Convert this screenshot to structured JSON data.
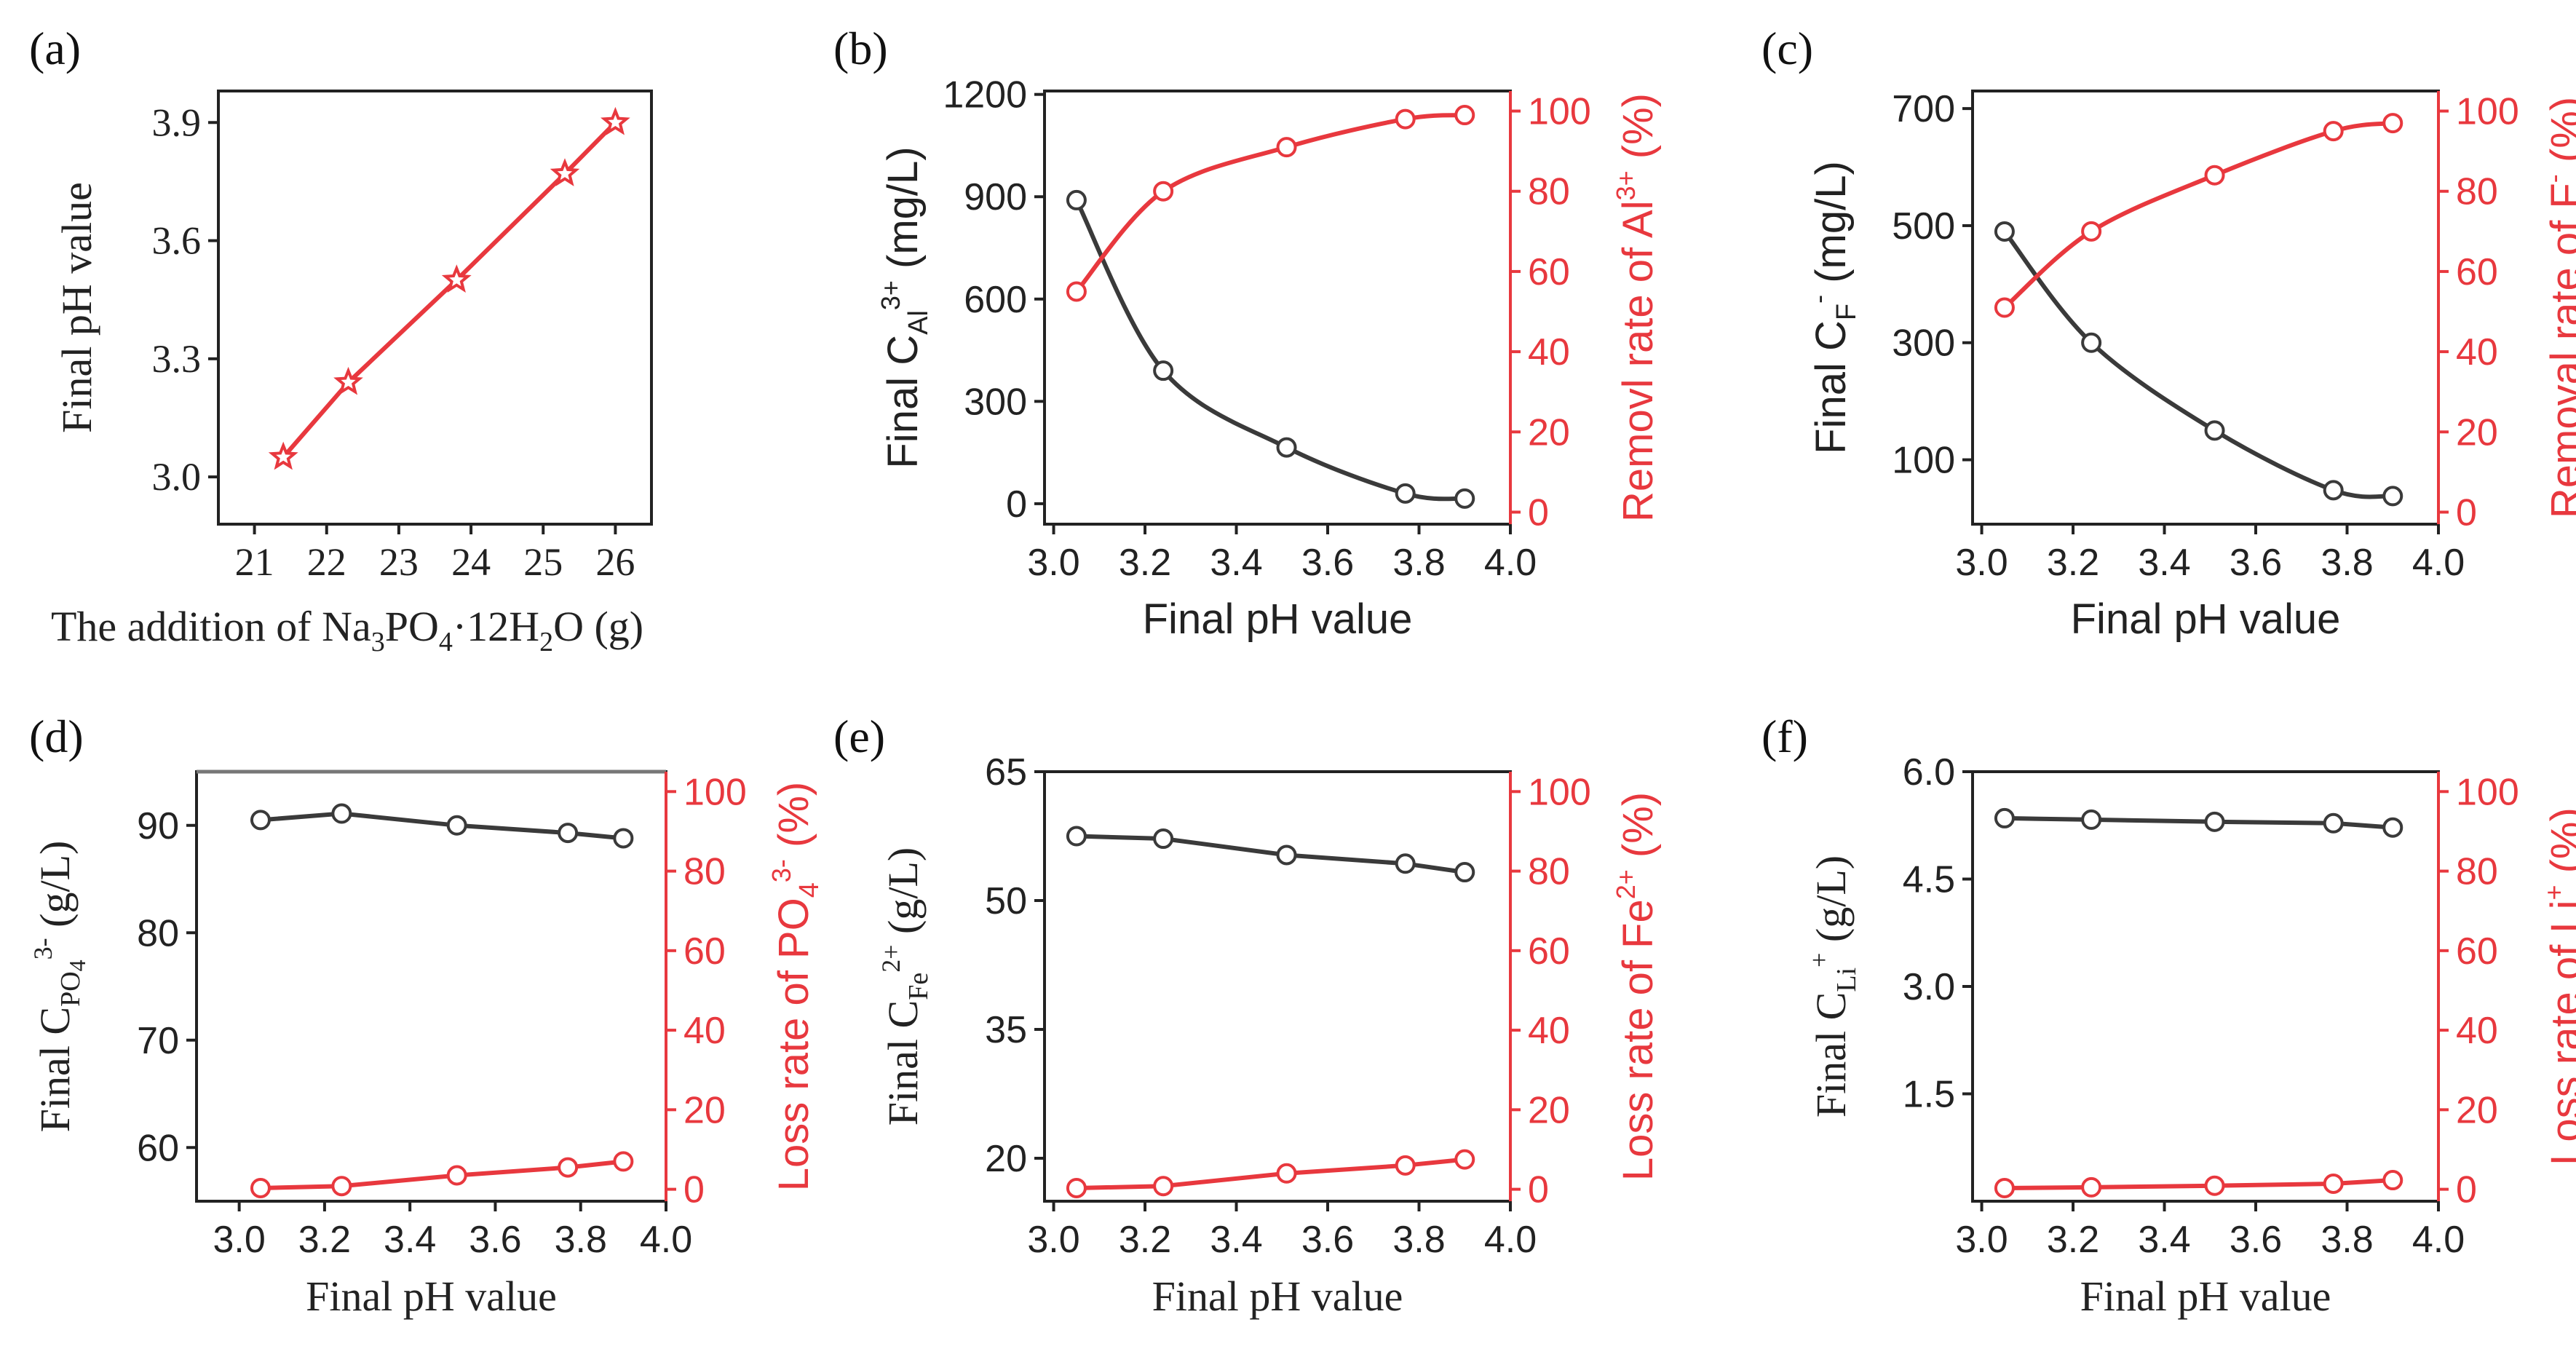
{
  "colors": {
    "black": "#3a3a3a",
    "red": "#e8383e",
    "axis": "#222222"
  },
  "chart_data": [
    {
      "panel_label": "(a)",
      "type": "line",
      "xlabel": "The addition of Na₃PO₄·12H₂O (g)",
      "ylabel": "Final pH value",
      "xlim": [
        20.5,
        26.5
      ],
      "ylim": [
        2.88,
        3.98
      ],
      "xticks": [
        "21",
        "22",
        "23",
        "24",
        "25",
        "26"
      ],
      "yticks": [
        "3.0",
        "3.3",
        "3.6",
        "3.9"
      ],
      "series": [
        {
          "name": "Final pH",
          "color": "red",
          "marker": "star",
          "x": [
            21.4,
            22.3,
            23.8,
            25.3,
            26.0
          ],
          "y": [
            3.05,
            3.24,
            3.5,
            3.77,
            3.9
          ]
        }
      ]
    },
    {
      "panel_label": "(b)",
      "type": "line",
      "xlabel": "Final pH value",
      "ylabel": "Final C_Al³⁺ (mg/L)",
      "ylabel_right": "Removl rate of Al³⁺ (%)",
      "xlim": [
        2.98,
        4.0
      ],
      "ylim": [
        -60,
        1210
      ],
      "ylim_right": [
        -3,
        105
      ],
      "xticks": [
        "3.0",
        "3.2",
        "3.4",
        "3.6",
        "3.8",
        "4.0"
      ],
      "yticks": [
        "0",
        "300",
        "600",
        "900",
        "1200"
      ],
      "yticks_right": [
        "0",
        "20",
        "40",
        "60",
        "80",
        "100"
      ],
      "series": [
        {
          "name": "Final C_Al3+",
          "color": "black",
          "axis": "left",
          "x": [
            3.05,
            3.24,
            3.51,
            3.77,
            3.9
          ],
          "y": [
            890,
            390,
            165,
            30,
            15
          ]
        },
        {
          "name": "Removal rate Al3+",
          "color": "red",
          "axis": "right",
          "x": [
            3.05,
            3.24,
            3.51,
            3.77,
            3.9
          ],
          "y": [
            55,
            80,
            91,
            98,
            99
          ]
        }
      ]
    },
    {
      "panel_label": "(c)",
      "type": "line",
      "xlabel": "Final pH value",
      "ylabel": "Final C_F⁻ (mg/L)",
      "ylabel_right": "Removal rate of F⁻ (%)",
      "xlim": [
        2.98,
        4.0
      ],
      "ylim": [
        -10,
        730
      ],
      "ylim_right": [
        -3,
        105
      ],
      "xticks": [
        "3.0",
        "3.2",
        "3.4",
        "3.6",
        "3.8",
        "4.0"
      ],
      "yticks": [
        "100",
        "300",
        "500",
        "700"
      ],
      "yticks_right": [
        "0",
        "20",
        "40",
        "60",
        "80",
        "100"
      ],
      "series": [
        {
          "name": "Final C_F-",
          "color": "black",
          "axis": "left",
          "x": [
            3.05,
            3.24,
            3.51,
            3.77,
            3.9
          ],
          "y": [
            490,
            300,
            150,
            48,
            38
          ]
        },
        {
          "name": "Removal rate F-",
          "color": "red",
          "axis": "right",
          "x": [
            3.05,
            3.24,
            3.51,
            3.77,
            3.9
          ],
          "y": [
            51,
            70,
            84,
            95,
            97
          ]
        }
      ]
    },
    {
      "panel_label": "(d)",
      "type": "line",
      "xlabel": "Final pH value",
      "ylabel": "Final C_PO₄³⁻ (g/L)",
      "ylabel_right": "Loss rate of PO₄³⁻ (%)",
      "xlim": [
        2.9,
        4.0
      ],
      "ylim": [
        55,
        95
      ],
      "ylim_right": [
        -3,
        105
      ],
      "xticks": [
        "3.0",
        "3.2",
        "3.4",
        "3.6",
        "3.8",
        "4.0"
      ],
      "yticks": [
        "60",
        "70",
        "80",
        "90"
      ],
      "yticks_right": [
        "0",
        "20",
        "40",
        "60",
        "80",
        "100"
      ],
      "series": [
        {
          "name": "Final C_PO4",
          "color": "black",
          "axis": "left",
          "x": [
            3.05,
            3.24,
            3.51,
            3.77,
            3.9
          ],
          "y": [
            90.5,
            91.1,
            90.0,
            89.3,
            88.8
          ]
        },
        {
          "name": "Loss rate PO4",
          "color": "red",
          "axis": "right",
          "x": [
            3.05,
            3.24,
            3.51,
            3.77,
            3.9
          ],
          "y": [
            0.3,
            0.8,
            3.5,
            5.5,
            7.0
          ]
        }
      ]
    },
    {
      "panel_label": "(e)",
      "type": "line",
      "xlabel": "Final pH value",
      "ylabel": "Final C_Fe²⁺ (g/L)",
      "ylabel_right": "Loss rate of Fe²⁺ (%)",
      "xlim": [
        2.98,
        4.0
      ],
      "ylim": [
        15,
        65
      ],
      "ylim_right": [
        -3,
        105
      ],
      "xticks": [
        "3.0",
        "3.2",
        "3.4",
        "3.6",
        "3.8",
        "4.0"
      ],
      "yticks": [
        "20",
        "35",
        "50",
        "65"
      ],
      "yticks_right": [
        "0",
        "20",
        "40",
        "60",
        "80",
        "100"
      ],
      "series": [
        {
          "name": "Final C_Fe",
          "color": "black",
          "axis": "left",
          "x": [
            3.05,
            3.24,
            3.51,
            3.77,
            3.9
          ],
          "y": [
            57.5,
            57.2,
            55.3,
            54.3,
            53.3
          ]
        },
        {
          "name": "Loss rate Fe",
          "color": "red",
          "axis": "right",
          "x": [
            3.05,
            3.24,
            3.51,
            3.77,
            3.9
          ],
          "y": [
            0.3,
            0.8,
            4.0,
            6.0,
            7.5
          ]
        }
      ]
    },
    {
      "panel_label": "(f)",
      "type": "line",
      "xlabel": "Final pH value",
      "ylabel": "Final C_Li⁺ (g/L)",
      "ylabel_right": "Loss rate of Li⁺ (%)",
      "xlim": [
        2.98,
        4.0
      ],
      "ylim": [
        0,
        6.0
      ],
      "ylim_right": [
        -3,
        105
      ],
      "xticks": [
        "3.0",
        "3.2",
        "3.4",
        "3.6",
        "3.8",
        "4.0"
      ],
      "yticks": [
        "1.5",
        "3.0",
        "4.5",
        "6.0"
      ],
      "yticks_right": [
        "0",
        "20",
        "40",
        "60",
        "80",
        "100"
      ],
      "series": [
        {
          "name": "Final C_Li",
          "color": "black",
          "axis": "left",
          "x": [
            3.05,
            3.24,
            3.51,
            3.77,
            3.9
          ],
          "y": [
            5.35,
            5.33,
            5.3,
            5.28,
            5.22
          ]
        },
        {
          "name": "Loss rate Li",
          "color": "red",
          "axis": "right",
          "x": [
            3.05,
            3.24,
            3.51,
            3.77,
            3.9
          ],
          "y": [
            0.3,
            0.5,
            0.9,
            1.4,
            2.3
          ]
        }
      ]
    }
  ]
}
